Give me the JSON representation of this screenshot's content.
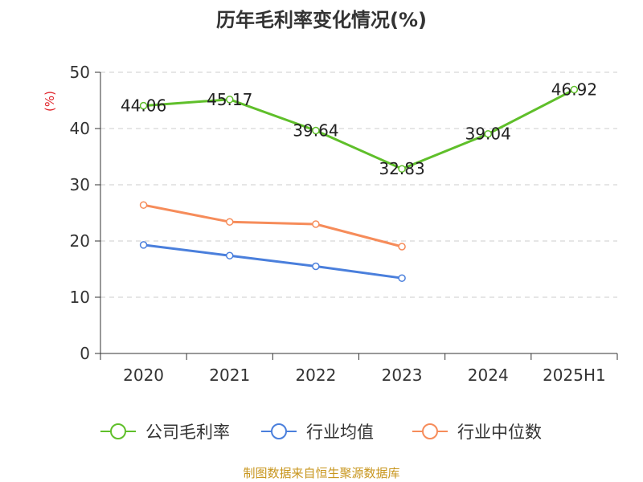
{
  "chart_data": {
    "type": "line",
    "title": "历年毛利率变化情况(%)",
    "ylabel": "(%)",
    "xlabel": "",
    "categories": [
      "2020",
      "2021",
      "2022",
      "2023",
      "2024",
      "2025H1"
    ],
    "ylim": [
      0,
      50
    ],
    "yticks": [
      0,
      10,
      20,
      30,
      40,
      50
    ],
    "grid": true,
    "legend_position": "bottom",
    "series": [
      {
        "name": "公司毛利率",
        "color": "#5fbf2a",
        "values": [
          44.06,
          45.17,
          39.64,
          32.83,
          39.04,
          46.92
        ],
        "labels": [
          "44.06",
          "45.17",
          "39.64",
          "32.83",
          "39.04",
          "46.92"
        ],
        "show_labels": true
      },
      {
        "name": "行业均值",
        "color": "#4a7fdc",
        "values": [
          19.3,
          17.4,
          15.5,
          13.4,
          null,
          null
        ],
        "show_labels": false
      },
      {
        "name": "行业中位数",
        "color": "#f68c5a",
        "values": [
          26.4,
          23.4,
          23.0,
          19.0,
          null,
          null
        ],
        "show_labels": false
      }
    ]
  },
  "footer": "制图数据来自恒生聚源数据库"
}
